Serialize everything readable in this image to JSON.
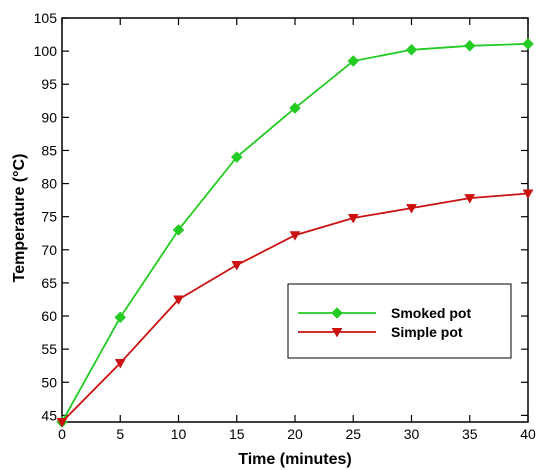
{
  "chart_data": {
    "type": "line",
    "title": "",
    "xlabel": "Time (minutes)",
    "ylabel": "Temperature (°C)",
    "xlim": [
      0,
      40
    ],
    "ylim": [
      44,
      105
    ],
    "x_ticks": [
      0,
      5,
      10,
      15,
      20,
      25,
      30,
      35,
      40
    ],
    "y_ticks": [
      45,
      50,
      55,
      60,
      65,
      70,
      75,
      80,
      85,
      90,
      95,
      100,
      105
    ],
    "x": [
      0,
      5,
      10,
      15,
      20,
      25,
      30,
      35,
      40
    ],
    "grid": false,
    "legend_position": "lower-right",
    "series": [
      {
        "name": "Smoked pot",
        "color": "#22cc22",
        "marker": "diamond",
        "values": [
          44,
          59.8,
          73,
          84,
          91.4,
          98.5,
          100.2,
          100.8,
          101.1
        ]
      },
      {
        "name": "Simple pot",
        "color": "#cc1111",
        "marker": "triangle-down",
        "values": [
          44,
          52.9,
          62.5,
          67.7,
          72.2,
          74.8,
          76.3,
          77.8,
          78.5
        ]
      }
    ]
  }
}
